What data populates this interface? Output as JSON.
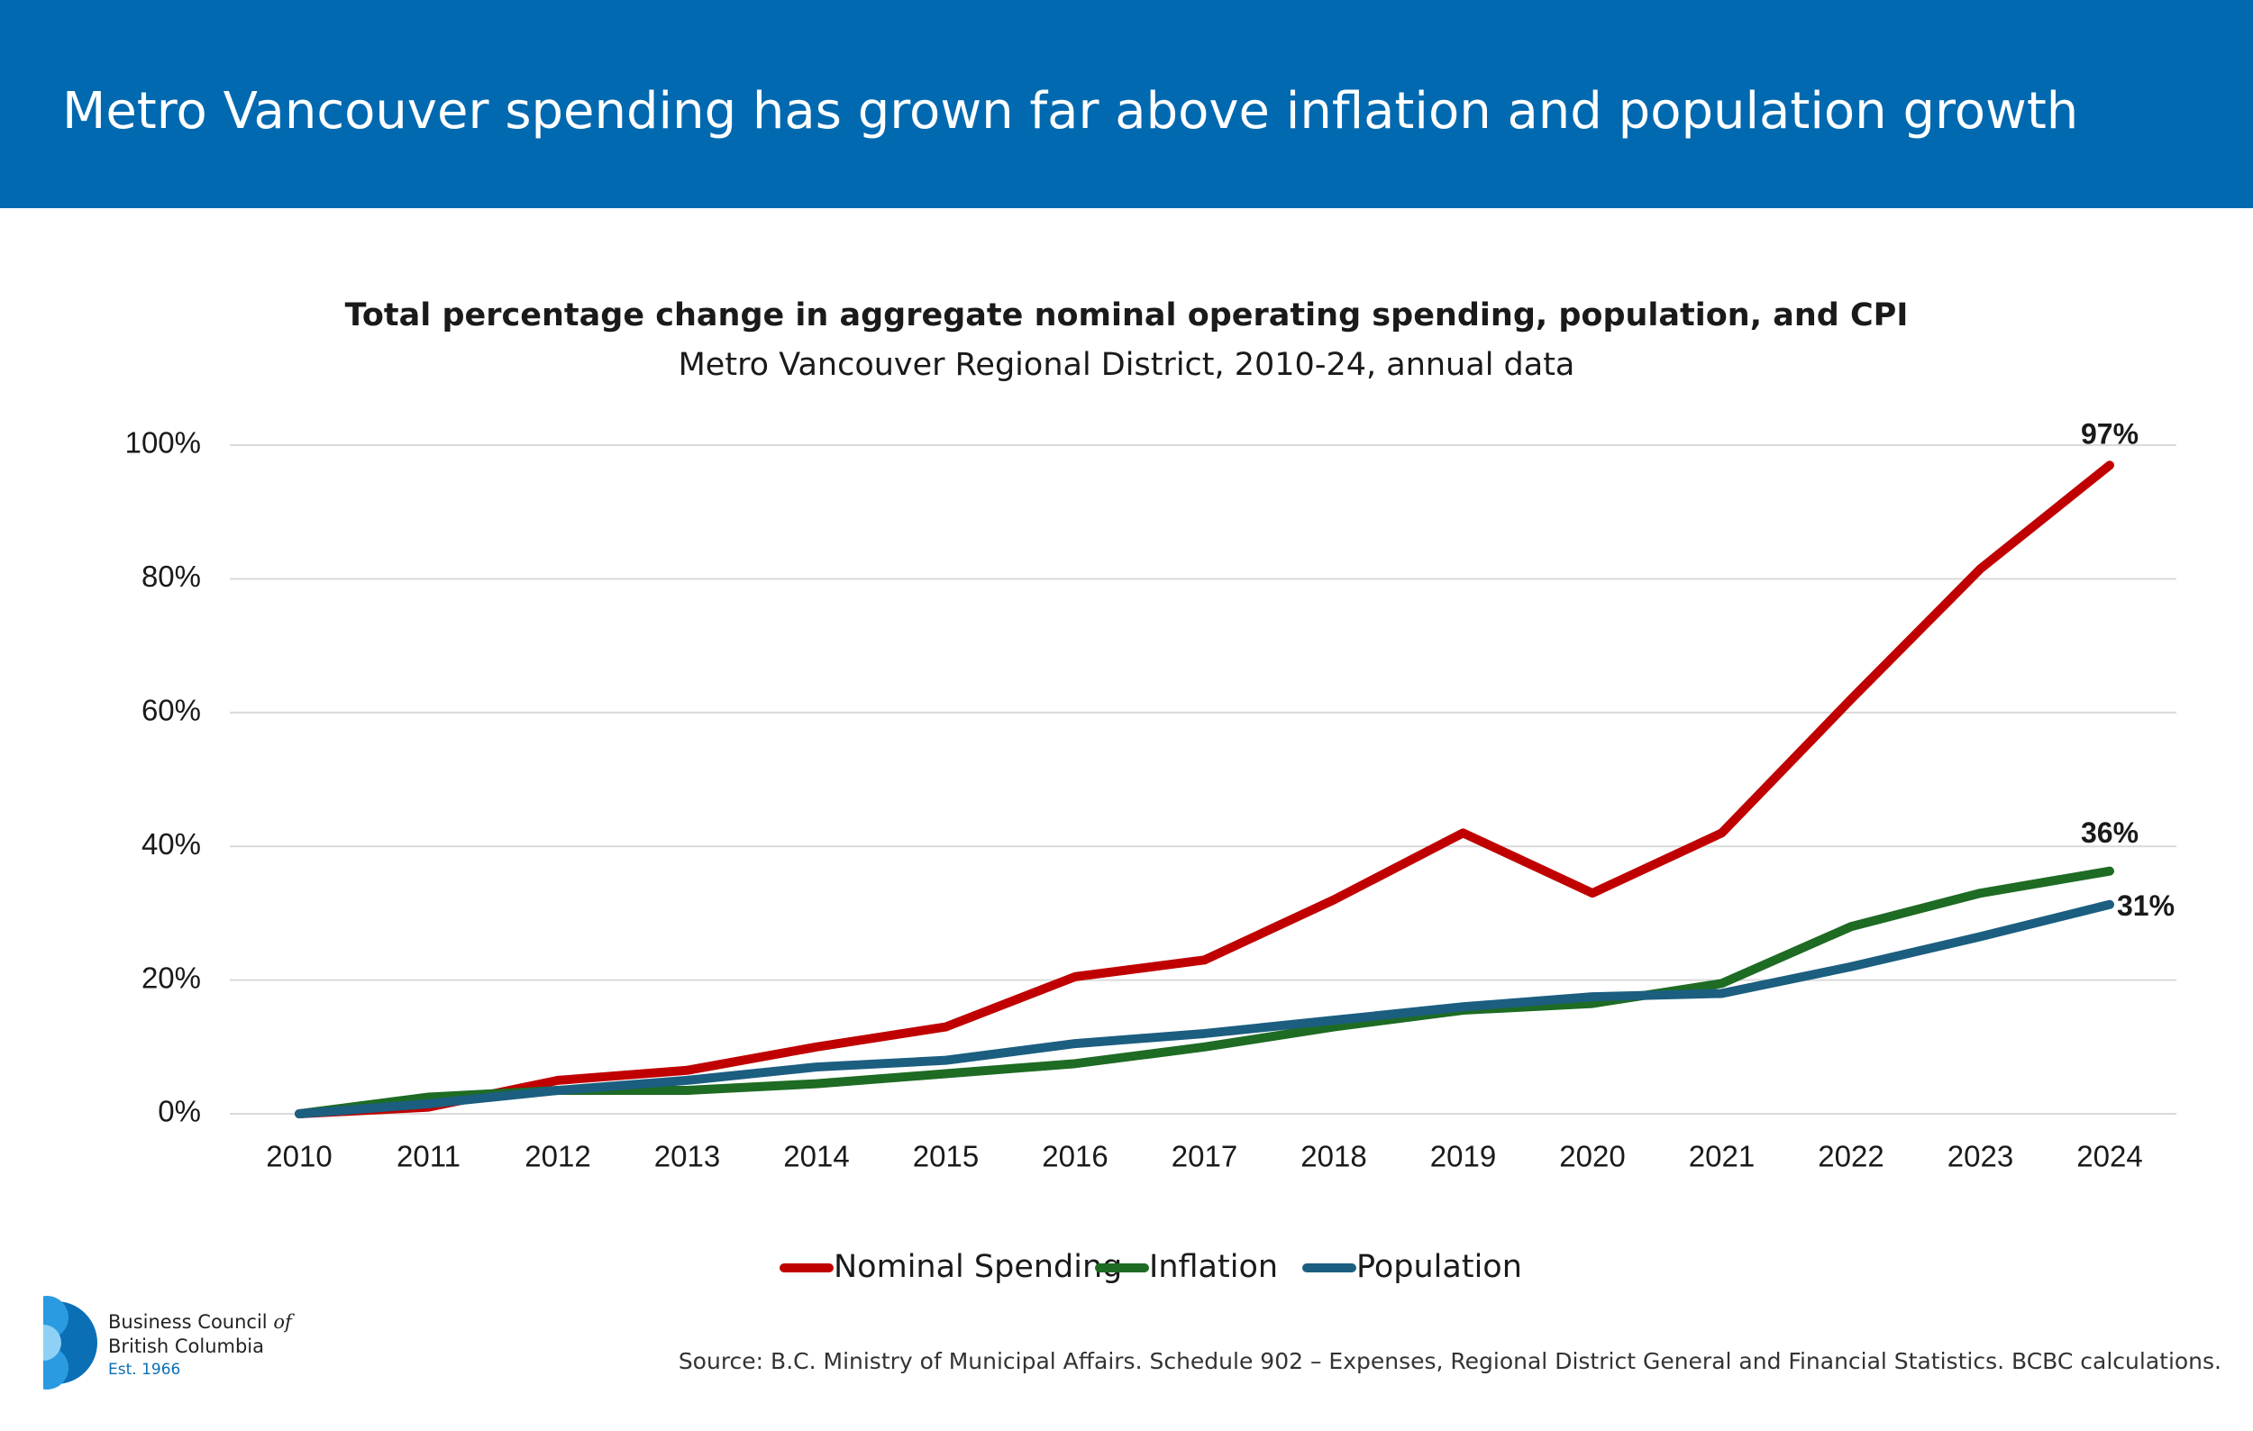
{
  "header": {
    "title": "Metro Vancouver spending has grown far above inflation and population growth"
  },
  "chart_data": {
    "type": "line",
    "title": "Total percentage change in aggregate nominal operating spending, population, and CPI",
    "subtitle": "Metro Vancouver Regional District, 2010-24, annual data",
    "categories": [
      "2010",
      "2011",
      "2012",
      "2013",
      "2014",
      "2015",
      "2016",
      "2017",
      "2018",
      "2019",
      "2020",
      "2021",
      "2022",
      "2023",
      "2024"
    ],
    "series": [
      {
        "name": "Nominal Spending",
        "color": "#c00000",
        "values": [
          0,
          1,
          5,
          6.5,
          10,
          13,
          20.5,
          23,
          32,
          42,
          33,
          42,
          62,
          81.5,
          97
        ],
        "value_labels": [
          null,
          null,
          null,
          null,
          null,
          null,
          null,
          null,
          null,
          null,
          null,
          null,
          null,
          null,
          "97%"
        ]
      },
      {
        "name": "Inflation",
        "color": "#1e6b24",
        "values": [
          0,
          2.5,
          3.5,
          3.5,
          4.5,
          6,
          7.5,
          10,
          13,
          15.5,
          16.5,
          19.5,
          28,
          33,
          36.3
        ],
        "value_labels": [
          null,
          null,
          null,
          null,
          null,
          null,
          null,
          null,
          null,
          null,
          null,
          null,
          null,
          null,
          "36%"
        ]
      },
      {
        "name": "Population",
        "color": "#1b5e80",
        "values": [
          0,
          1.5,
          3.5,
          5,
          7,
          8,
          10.5,
          12,
          14,
          16,
          17.5,
          18,
          22,
          26.5,
          31.3
        ],
        "value_labels": [
          null,
          null,
          null,
          null,
          null,
          null,
          null,
          null,
          null,
          null,
          null,
          null,
          null,
          null,
          "31%"
        ]
      }
    ],
    "ylim": [
      0,
      100
    ],
    "yticks": [
      {
        "value": 0,
        "label": "0%"
      },
      {
        "value": 20,
        "label": "20%"
      },
      {
        "value": 40,
        "label": "40%"
      },
      {
        "value": 60,
        "label": "60%"
      },
      {
        "value": 80,
        "label": "80%"
      },
      {
        "value": 100,
        "label": "100%"
      }
    ],
    "grid": true,
    "legend": "bottom",
    "source": "Source: B.C. Ministry of Municipal Affairs. Schedule 902 – Expenses, Regional District General and Financial Statistics. BCBC calculations."
  },
  "logo": {
    "line1": "Business Council",
    "of": "of",
    "line2": "British Columbia",
    "est": "Est. 1966"
  }
}
